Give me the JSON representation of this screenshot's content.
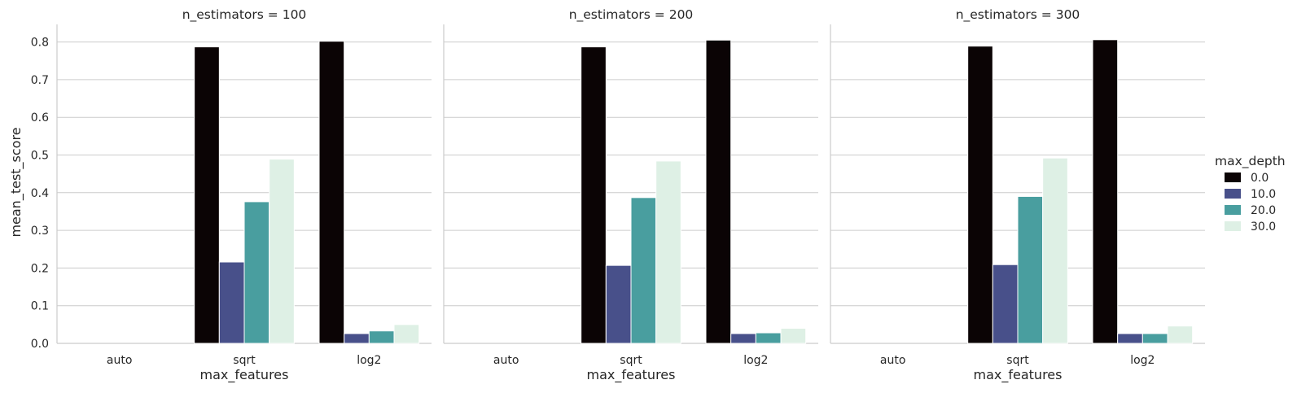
{
  "chart_data": {
    "type": "bar",
    "ylabel": "mean_test_score",
    "xlabel": "max_features",
    "ylim": [
      0,
      0.85
    ],
    "yticks": [
      "0.0",
      "0.1",
      "0.2",
      "0.3",
      "0.4",
      "0.5",
      "0.6",
      "0.7",
      "0.8"
    ],
    "grid": true,
    "legend": {
      "title": "max_depth",
      "placement": "right",
      "entries": [
        "0.0",
        "10.0",
        "20.0",
        "30.0"
      ]
    },
    "colors": [
      "#0b0405",
      "#48508a",
      "#499e9f",
      "#def0e5"
    ],
    "categories": [
      "auto",
      "sqrt",
      "log2"
    ],
    "panels": [
      {
        "title": "n_estimators = 100",
        "series": [
          {
            "name": "0.0",
            "values": [
              0,
              0.787,
              0.802
            ]
          },
          {
            "name": "10.0",
            "values": [
              0,
              0.216,
              0.026
            ]
          },
          {
            "name": "20.0",
            "values": [
              0,
              0.376,
              0.033
            ]
          },
          {
            "name": "30.0",
            "values": [
              0,
              0.489,
              0.05
            ]
          }
        ]
      },
      {
        "title": "n_estimators = 200",
        "series": [
          {
            "name": "0.0",
            "values": [
              0,
              0.787,
              0.805
            ]
          },
          {
            "name": "10.0",
            "values": [
              0,
              0.207,
              0.026
            ]
          },
          {
            "name": "20.0",
            "values": [
              0,
              0.387,
              0.028
            ]
          },
          {
            "name": "30.0",
            "values": [
              0,
              0.484,
              0.04
            ]
          }
        ]
      },
      {
        "title": "n_estimators = 300",
        "series": [
          {
            "name": "0.0",
            "values": [
              0,
              0.789,
              0.806
            ]
          },
          {
            "name": "10.0",
            "values": [
              0,
              0.209,
              0.026
            ]
          },
          {
            "name": "20.0",
            "values": [
              0,
              0.39,
              0.026
            ]
          },
          {
            "name": "30.0",
            "values": [
              0,
              0.492,
              0.046
            ]
          }
        ]
      }
    ]
  }
}
